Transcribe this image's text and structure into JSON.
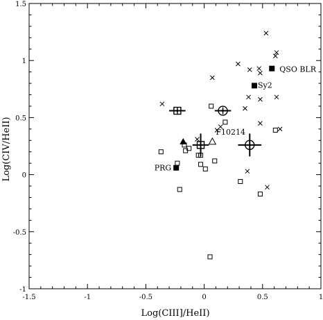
{
  "chart_data": {
    "type": "scatter",
    "xlabel": "Log(CIII]/HeII)",
    "ylabel": "Log(CIV/HeII)",
    "xlim": [
      -1.5,
      1
    ],
    "ylim": [
      -1,
      1.5
    ],
    "grid": false,
    "x_ticks": [
      {
        "value": -1.5,
        "label": "-1.5"
      },
      {
        "value": -1,
        "label": "-1"
      },
      {
        "value": -0.5,
        "label": "-0.5"
      },
      {
        "value": 0,
        "label": "0"
      },
      {
        "value": 0.5,
        "label": "0.5"
      },
      {
        "value": 1,
        "label": "1"
      }
    ],
    "y_ticks": [
      {
        "value": -1,
        "label": "-1"
      },
      {
        "value": -0.5,
        "label": "-0.5"
      },
      {
        "value": 0,
        "label": "0"
      },
      {
        "value": 0.5,
        "label": "0.5"
      },
      {
        "value": 1,
        "label": "1"
      },
      {
        "value": 1.5,
        "label": "1.5"
      }
    ],
    "series": [
      {
        "marker": "cross",
        "points": [
          {
            "x": 0.53,
            "y": 1.24
          },
          {
            "x": 0.62,
            "y": 1.07
          },
          {
            "x": 0.61,
            "y": 1.04
          },
          {
            "x": 0.29,
            "y": 0.97
          },
          {
            "x": 0.39,
            "y": 0.92
          },
          {
            "x": 0.47,
            "y": 0.93
          },
          {
            "x": 0.48,
            "y": 0.89
          },
          {
            "x": 0.07,
            "y": 0.85
          },
          {
            "x": 0.38,
            "y": 0.68
          },
          {
            "x": 0.48,
            "y": 0.66
          },
          {
            "x": 0.62,
            "y": 0.68
          },
          {
            "x": -0.36,
            "y": 0.62
          },
          {
            "x": 0.35,
            "y": 0.58
          },
          {
            "x": 0.14,
            "y": 0.42
          },
          {
            "x": 0.11,
            "y": 0.39
          },
          {
            "x": 0.48,
            "y": 0.45
          },
          {
            "x": 0.65,
            "y": 0.4
          },
          {
            "x": -0.06,
            "y": 0.31
          },
          {
            "x": 0.37,
            "y": 0.03
          },
          {
            "x": 0.54,
            "y": -0.11
          }
        ]
      },
      {
        "marker": "open-square",
        "points": [
          {
            "x": 0.06,
            "y": 0.6
          },
          {
            "x": 0.18,
            "y": 0.46
          },
          {
            "x": 0.61,
            "y": 0.39
          },
          {
            "x": -0.37,
            "y": 0.2
          },
          {
            "x": -0.17,
            "y": 0.26
          },
          {
            "x": -0.16,
            "y": 0.21
          },
          {
            "x": -0.13,
            "y": 0.23
          },
          {
            "x": -0.05,
            "y": 0.17
          },
          {
            "x": -0.03,
            "y": 0.17
          },
          {
            "x": 0.09,
            "y": 0.12
          },
          {
            "x": -0.03,
            "y": 0.09
          },
          {
            "x": 0.01,
            "y": 0.05
          },
          {
            "x": -0.23,
            "y": 0.1
          },
          {
            "x": 0.31,
            "y": -0.06
          },
          {
            "x": -0.21,
            "y": -0.13
          },
          {
            "x": 0.48,
            "y": -0.17
          },
          {
            "x": 0.05,
            "y": -0.72
          }
        ]
      },
      {
        "marker": "filled-square",
        "points": [
          {
            "x": 0.58,
            "y": 0.93,
            "label": "QSO BLR"
          },
          {
            "x": 0.43,
            "y": 0.78,
            "label": "Sy2"
          },
          {
            "x": -0.24,
            "y": 0.06,
            "label": "PRG"
          }
        ]
      },
      {
        "marker": "filled-triangle",
        "points": [
          {
            "x": -0.18,
            "y": 0.29
          }
        ]
      },
      {
        "marker": "open-triangle",
        "points": [
          {
            "x": 0.07,
            "y": 0.29,
            "label": "F10214"
          }
        ]
      },
      {
        "marker": "boxed-plus-errorbar",
        "points": [
          {
            "x": -0.23,
            "y": 0.56,
            "xerr": 0.07,
            "yerr": 0.01
          },
          {
            "x": -0.03,
            "y": 0.26,
            "xerr": 0.07,
            "yerr": 0.1
          }
        ]
      },
      {
        "marker": "circled-plus-errorbar",
        "points": [
          {
            "x": 0.16,
            "y": 0.56,
            "xerr": 0.07,
            "yerr": 0.01
          },
          {
            "x": 0.39,
            "y": 0.26,
            "xerr": 0.1,
            "yerr": 0.1
          }
        ]
      }
    ]
  }
}
